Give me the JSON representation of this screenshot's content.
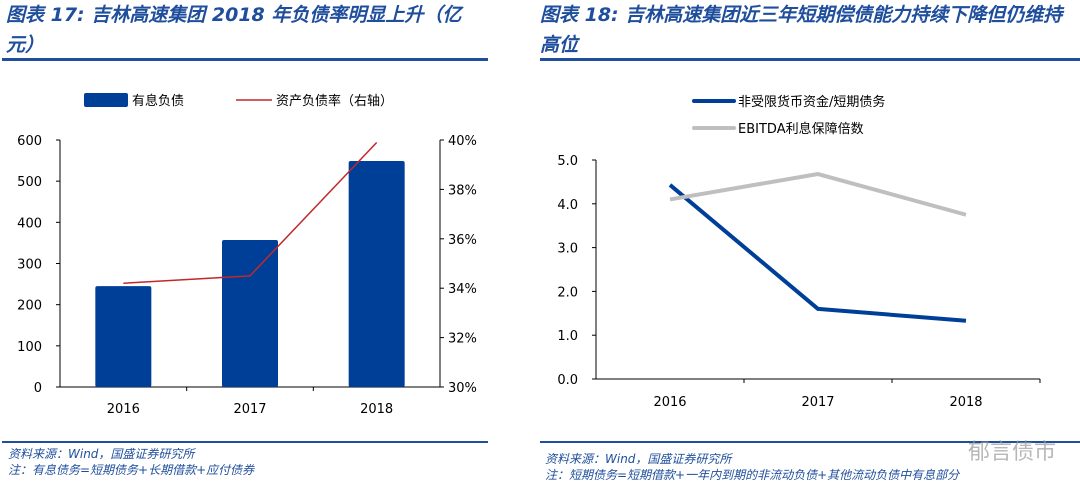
{
  "left": {
    "title": "图表 17:  吉林高速集团 2018 年负债率明显上升（亿元）",
    "source": "资料来源：Wind，国盛证券研究所",
    "note": "注：有息债务=短期债务+长期借款+应付债券"
  },
  "right": {
    "title": "图表 18:  吉林高速集团近三年短期偿债能力持续下降但仍维持高位",
    "source": "资料来源：Wind，国盛证券研究所",
    "note": "注：短期债务=短期借款+一年内到期的非流动负债+其他流动负债中有息部分"
  },
  "watermark": "郁言债市",
  "chart_data": [
    {
      "type": "bar",
      "categories": [
        "2016",
        "2017",
        "2018"
      ],
      "series": [
        {
          "name": "有息负债",
          "values": [
            245,
            357,
            549
          ],
          "axis": "left",
          "color": "#003f98"
        },
        {
          "name": "资产负债率（右轴）",
          "type": "line",
          "values": [
            34.2,
            34.5,
            39.9
          ],
          "axis": "right",
          "color": "#c0282d"
        }
      ],
      "ylim": [
        0,
        600
      ],
      "yticks": [
        "0",
        "100",
        "200",
        "300",
        "400",
        "500",
        "600"
      ],
      "y2lim": [
        30,
        40
      ],
      "y2ticks": [
        "30%",
        "32%",
        "34%",
        "36%",
        "38%",
        "40%"
      ],
      "legend": "top",
      "grid": false
    },
    {
      "type": "line",
      "categories": [
        "2016",
        "2017",
        "2018"
      ],
      "series": [
        {
          "name": "非受限货币资金/短期债务",
          "values": [
            4.43,
            1.6,
            1.33
          ],
          "color": "#003f98"
        },
        {
          "name": "EBITDA利息保障倍数",
          "values": [
            4.1,
            4.68,
            3.75
          ],
          "color": "#bfbfbf"
        }
      ],
      "ylim": [
        0,
        5
      ],
      "yticks": [
        "0.0",
        "1.0",
        "2.0",
        "3.0",
        "4.0",
        "5.0"
      ],
      "legend": "top",
      "grid": false
    }
  ]
}
